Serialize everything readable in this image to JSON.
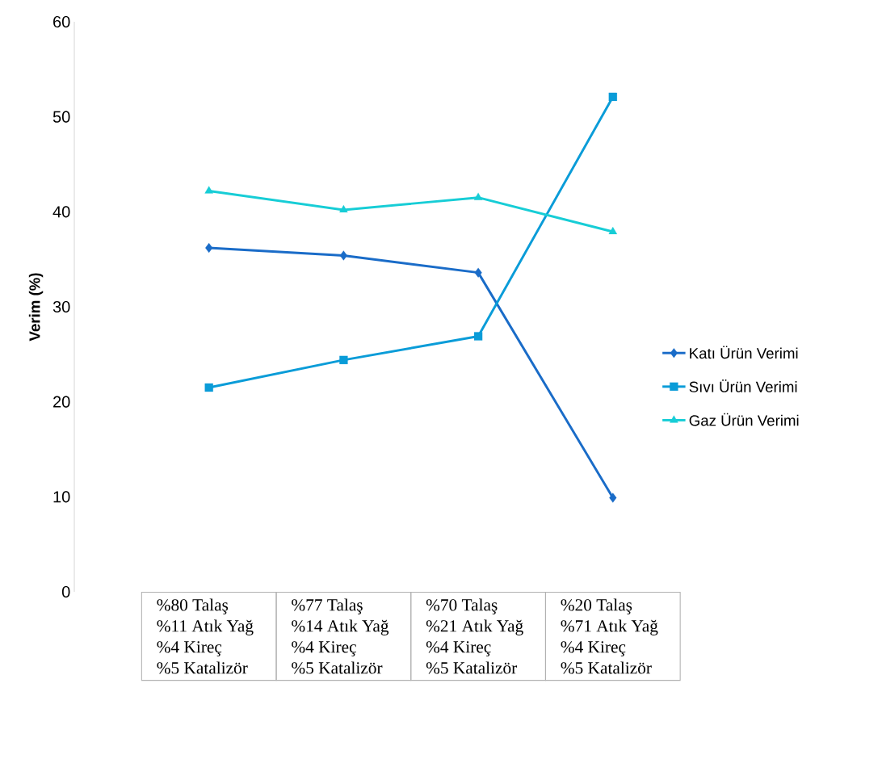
{
  "chart_data": {
    "type": "line",
    "ylabel": "Verim (%)",
    "categories": [
      "%80 Talaş\n%11 Atık Yağ\n%4 Kireç\n%5 Katalizör",
      "%77 Talaş\n%14 Atık Yağ\n%4 Kireç\n%5 Katalizör",
      "%70 Talaş\n%21 Atık Yağ\n%4 Kireç\n%5 Katalizör",
      "%20 Talaş\n%71 Atık Yağ\n%4 Kireç\n%5 Katalizör"
    ],
    "series": [
      {
        "name": "Katı Ürün Verimi",
        "color": "#1a6cc8",
        "marker": "diamond",
        "values": [
          36.2,
          35.4,
          33.6,
          9.9
        ]
      },
      {
        "name": "Sıvı Ürün Verimi",
        "color": "#0a9cd8",
        "marker": "square",
        "values": [
          21.5,
          24.4,
          26.9,
          52.1
        ]
      },
      {
        "name": "Gaz Ürün Verimi",
        "color": "#17cdd6",
        "marker": "triangle",
        "values": [
          42.2,
          40.2,
          41.5,
          37.9
        ]
      }
    ],
    "ylim": [
      0,
      60
    ],
    "yticks": [
      0,
      10,
      20,
      30,
      40,
      50,
      60
    ],
    "legend": "right",
    "grid": false
  }
}
